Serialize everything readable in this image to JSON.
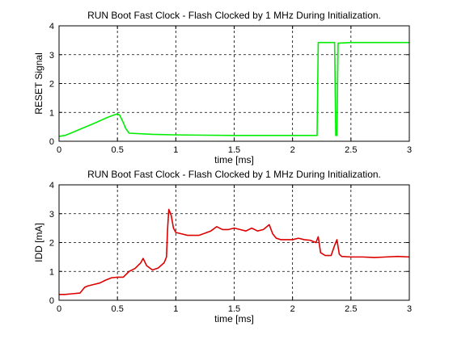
{
  "chart_data": [
    {
      "type": "line",
      "title": "RUN Boot Fast Clock - Flash Clocked by 1 MHz During Initialization.",
      "xlabel": "time [ms]",
      "ylabel": "RESET Signal",
      "xlim": [
        0,
        3
      ],
      "ylim": [
        0,
        4
      ],
      "xticks": [
        "0",
        "0.5",
        "1",
        "1.5",
        "2",
        "2.5",
        "3"
      ],
      "yticks": [
        "0",
        "1",
        "2",
        "3",
        "4"
      ],
      "grid": true,
      "color": "#00ee00",
      "series": [
        {
          "x": [
            0,
            0.05,
            0.1,
            0.2,
            0.3,
            0.4,
            0.45,
            0.5,
            0.52,
            0.55,
            0.57,
            0.6,
            0.8,
            1.0,
            1.5,
            2.0,
            2.2,
            2.21,
            2.22,
            2.3,
            2.35,
            2.36,
            2.37,
            2.38,
            2.39,
            2.4,
            2.5,
            2.7,
            3.0
          ],
          "y": [
            0.17,
            0.2,
            0.28,
            0.45,
            0.62,
            0.8,
            0.88,
            0.95,
            0.9,
            0.65,
            0.45,
            0.28,
            0.24,
            0.22,
            0.2,
            0.2,
            0.2,
            0.2,
            3.42,
            3.42,
            3.42,
            3.42,
            0.2,
            0.2,
            3.4,
            3.4,
            3.42,
            3.42,
            3.42
          ]
        }
      ]
    },
    {
      "type": "line",
      "title": "RUN Boot Fast Clock - Flash Clocked by 1 MHz During Initialization.",
      "xlabel": "time [ms]",
      "ylabel": "IDD [mA]",
      "xlim": [
        0,
        3
      ],
      "ylim": [
        0,
        4
      ],
      "xticks": [
        "0",
        "0.5",
        "1",
        "1.5",
        "2",
        "2.5",
        "3"
      ],
      "yticks": [
        "0",
        "1",
        "2",
        "3",
        "4"
      ],
      "grid": true,
      "color": "#dd0000",
      "series": [
        {
          "x": [
            0,
            0.05,
            0.1,
            0.18,
            0.22,
            0.25,
            0.3,
            0.35,
            0.4,
            0.45,
            0.5,
            0.55,
            0.6,
            0.65,
            0.7,
            0.72,
            0.75,
            0.8,
            0.85,
            0.9,
            0.92,
            0.93,
            0.94,
            0.96,
            0.98,
            1.0,
            1.05,
            1.1,
            1.2,
            1.3,
            1.35,
            1.4,
            1.45,
            1.5,
            1.55,
            1.6,
            1.65,
            1.7,
            1.75,
            1.8,
            1.83,
            1.86,
            1.9,
            2.0,
            2.05,
            2.1,
            2.15,
            2.2,
            2.22,
            2.24,
            2.28,
            2.33,
            2.36,
            2.38,
            2.4,
            2.42,
            2.5,
            2.6,
            2.7,
            2.8,
            2.9,
            3.0
          ],
          "y": [
            0.2,
            0.2,
            0.22,
            0.25,
            0.45,
            0.5,
            0.55,
            0.6,
            0.7,
            0.78,
            0.8,
            0.8,
            1.0,
            1.1,
            1.3,
            1.45,
            1.2,
            1.05,
            1.12,
            1.3,
            1.5,
            2.5,
            3.15,
            2.95,
            2.5,
            2.35,
            2.3,
            2.25,
            2.25,
            2.4,
            2.55,
            2.45,
            2.45,
            2.5,
            2.45,
            2.4,
            2.5,
            2.4,
            2.45,
            2.62,
            2.3,
            2.15,
            2.1,
            2.1,
            2.15,
            2.1,
            2.08,
            2.0,
            2.2,
            1.65,
            1.55,
            1.55,
            1.9,
            2.1,
            1.6,
            1.52,
            1.5,
            1.5,
            1.48,
            1.5,
            1.52,
            1.5
          ]
        }
      ]
    }
  ]
}
